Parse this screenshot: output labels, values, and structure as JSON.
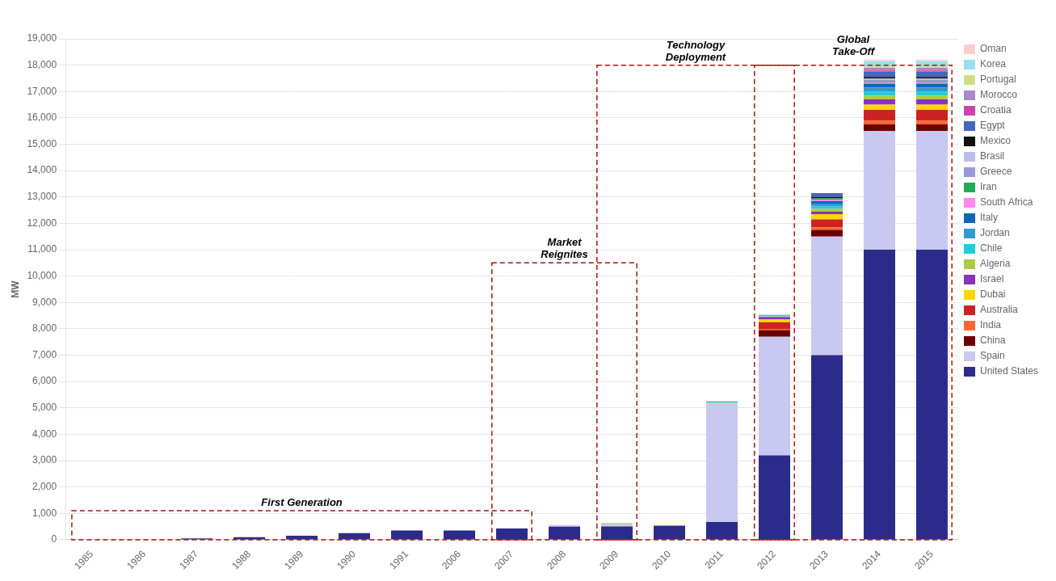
{
  "chart_data": {
    "type": "bar",
    "stacked": true,
    "grid": true,
    "legend": "right",
    "ylabel": "MW",
    "categories": [
      "1985",
      "1986",
      "1987",
      "1988",
      "1989",
      "1990",
      "1991",
      "2006",
      "2007",
      "2008",
      "2009",
      "2010",
      "2011",
      "2012",
      "2013",
      "2014",
      "2015"
    ],
    "ylim": [
      0,
      19000
    ],
    "yticks": [
      0,
      {
        "value": 1000,
        "label": "1,000"
      },
      {
        "value": 2000,
        "label": "2,000"
      },
      {
        "value": 3000,
        "label": "3,000"
      },
      {
        "value": 4000,
        "label": "4,000"
      },
      {
        "value": 5000,
        "label": "5,000"
      },
      {
        "value": 6000,
        "label": "6,000"
      },
      {
        "value": 7000,
        "label": "7,000"
      },
      {
        "value": 8000,
        "label": "8,000"
      },
      {
        "value": 9000,
        "label": "9,000"
      },
      {
        "value": 10000,
        "label": "10,000"
      },
      {
        "value": 11000,
        "label": "11,000"
      },
      {
        "value": 12000,
        "label": "12,000"
      },
      {
        "value": 13000,
        "label": "13,000"
      },
      {
        "value": 14000,
        "label": "14,000"
      },
      {
        "value": 15000,
        "label": "15,000"
      },
      {
        "value": 16000,
        "label": "16,000"
      },
      {
        "value": 17000,
        "label": "17,000"
      },
      {
        "value": 18000,
        "label": "18,000"
      },
      {
        "value": 19000,
        "label": "19,000"
      }
    ],
    "series": [
      {
        "name": "United States",
        "color": "#2B2B8C",
        "values": [
          14,
          14,
          50,
          100,
          150,
          250,
          354,
          354,
          430,
          500,
          507,
          530,
          670,
          3200,
          7000,
          11000,
          11000
        ]
      },
      {
        "name": "Spain",
        "color": "#C8C8F0",
        "values": [
          0,
          0,
          0,
          0,
          0,
          0,
          0,
          0,
          0,
          60,
          100,
          0,
          4500,
          4500,
          4500,
          4500,
          4500
        ]
      },
      {
        "name": "China",
        "color": "#6B0000",
        "values": [
          0,
          0,
          0,
          0,
          0,
          0,
          0,
          0,
          0,
          0,
          0,
          0,
          0,
          250,
          250,
          250,
          250
        ]
      },
      {
        "name": "India",
        "color": "#FF6633",
        "values": [
          0,
          0,
          0,
          0,
          0,
          0,
          0,
          0,
          0,
          0,
          0,
          0,
          0,
          50,
          100,
          150,
          150
        ]
      },
      {
        "name": "Australia",
        "color": "#CC2222",
        "values": [
          0,
          0,
          0,
          0,
          0,
          0,
          0,
          0,
          0,
          0,
          0,
          0,
          0,
          250,
          300,
          400,
          400
        ]
      },
      {
        "name": "Dubai",
        "color": "#FFD700",
        "values": [
          0,
          0,
          0,
          0,
          0,
          0,
          0,
          0,
          0,
          0,
          0,
          0,
          0,
          100,
          200,
          200,
          200
        ]
      },
      {
        "name": "Israel",
        "color": "#8833BB",
        "values": [
          0,
          0,
          0,
          0,
          0,
          0,
          0,
          0,
          0,
          0,
          0,
          0,
          0,
          100,
          100,
          200,
          200
        ]
      },
      {
        "name": "Algeria",
        "color": "#AACC44",
        "values": [
          0,
          0,
          0,
          0,
          0,
          0,
          0,
          0,
          0,
          0,
          25,
          25,
          25,
          25,
          100,
          150,
          150
        ]
      },
      {
        "name": "Chile",
        "color": "#22CCDD",
        "values": [
          0,
          0,
          0,
          0,
          0,
          0,
          0,
          0,
          0,
          0,
          0,
          0,
          25,
          25,
          100,
          150,
          150
        ]
      },
      {
        "name": "Jordan",
        "color": "#3399CC",
        "values": [
          0,
          0,
          0,
          0,
          0,
          0,
          0,
          0,
          0,
          0,
          0,
          0,
          0,
          0,
          100,
          150,
          150
        ]
      },
      {
        "name": "Italy",
        "color": "#1166BB",
        "values": [
          0,
          0,
          0,
          0,
          0,
          0,
          0,
          0,
          0,
          0,
          0,
          0,
          25,
          25,
          100,
          150,
          150
        ]
      },
      {
        "name": "South Africa",
        "color": "#FF88EE",
        "values": [
          0,
          0,
          0,
          0,
          0,
          0,
          0,
          0,
          0,
          0,
          0,
          0,
          0,
          0,
          50,
          50,
          50
        ]
      },
      {
        "name": "Iran",
        "color": "#22AA55",
        "values": [
          0,
          0,
          0,
          0,
          0,
          0,
          0,
          0,
          0,
          0,
          0,
          0,
          0,
          0,
          50,
          50,
          50
        ]
      },
      {
        "name": "Greece",
        "color": "#9999DD",
        "values": [
          0,
          0,
          0,
          0,
          0,
          0,
          0,
          0,
          0,
          0,
          0,
          0,
          0,
          0,
          0,
          50,
          50
        ]
      },
      {
        "name": "Brasil",
        "color": "#BBBBEE",
        "values": [
          0,
          0,
          0,
          0,
          0,
          0,
          0,
          0,
          0,
          0,
          0,
          0,
          0,
          0,
          0,
          50,
          50
        ]
      },
      {
        "name": "Mexico",
        "color": "#111111",
        "values": [
          0,
          0,
          0,
          0,
          0,
          0,
          0,
          0,
          0,
          0,
          0,
          0,
          0,
          0,
          50,
          50,
          50
        ]
      },
      {
        "name": "Egypt",
        "color": "#4466BB",
        "values": [
          0,
          0,
          0,
          0,
          0,
          0,
          0,
          0,
          0,
          0,
          0,
          0,
          0,
          0,
          150,
          200,
          200
        ]
      },
      {
        "name": "Croatia",
        "color": "#CC44AA",
        "values": [
          0,
          0,
          0,
          0,
          0,
          0,
          0,
          0,
          0,
          0,
          0,
          0,
          0,
          0,
          0,
          50,
          50
        ]
      },
      {
        "name": "Morocco",
        "color": "#AA88CC",
        "values": [
          0,
          0,
          0,
          0,
          0,
          0,
          0,
          0,
          0,
          0,
          0,
          0,
          0,
          0,
          0,
          100,
          100
        ]
      },
      {
        "name": "Portugal",
        "color": "#CCDD88",
        "values": [
          0,
          0,
          0,
          0,
          0,
          0,
          0,
          0,
          0,
          0,
          0,
          0,
          0,
          0,
          0,
          50,
          50
        ]
      },
      {
        "name": "Korea",
        "color": "#99DDEE",
        "values": [
          0,
          0,
          0,
          0,
          0,
          0,
          0,
          0,
          0,
          0,
          0,
          0,
          0,
          0,
          0,
          200,
          200
        ]
      },
      {
        "name": "Oman",
        "color": "#FFCCCC",
        "values": [
          0,
          0,
          0,
          0,
          0,
          0,
          0,
          0,
          0,
          0,
          0,
          0,
          0,
          0,
          0,
          50,
          50
        ]
      }
    ],
    "annotations": [
      {
        "text": "First Generation",
        "x": [
          "1985",
          "2007"
        ],
        "y": [
          0,
          1100
        ],
        "color": "#AA1111"
      },
      {
        "text": "Market\nReignites",
        "x": [
          "2007",
          "2009"
        ],
        "y": [
          0,
          10500
        ],
        "color": "#AA1111"
      },
      {
        "text": "Technology\nDeployment",
        "x": [
          "2009",
          "2012"
        ],
        "y": [
          0,
          18000
        ],
        "color": "#AA1111"
      },
      {
        "text": "Global\nTake-Off",
        "x": [
          "2012",
          "2015"
        ],
        "y": [
          0,
          18000
        ],
        "color": "#AA1111"
      }
    ]
  }
}
